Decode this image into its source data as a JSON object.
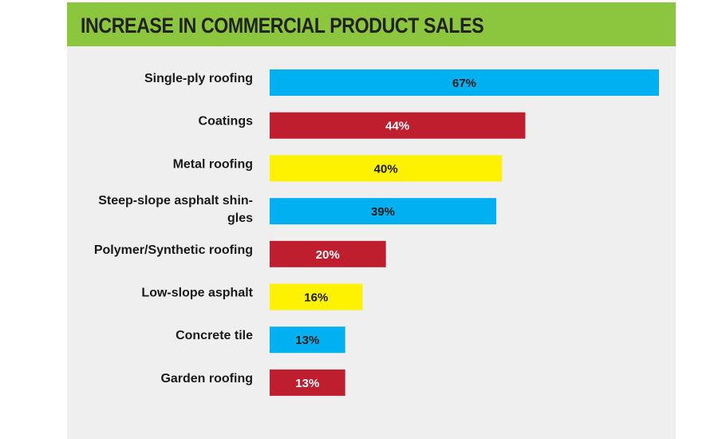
{
  "chart_data": {
    "type": "bar",
    "orientation": "horizontal",
    "title": "INCREASE IN COMMERCIAL PRODUCT SALES",
    "categories": [
      "Single-ply roofing",
      "Coatings",
      "Metal roofing",
      "Steep-slope asphalt shin-gles",
      "Polymer/Synthetic roofing",
      "Low-slope asphalt",
      "Concrete tile",
      "Garden roofing"
    ],
    "category_lines": [
      [
        "Single-ply roofing"
      ],
      [
        "Coatings"
      ],
      [
        "Metal roofing"
      ],
      [
        "Steep-slope asphalt shin-",
        "gles"
      ],
      [
        "Polymer/Synthetic roofing"
      ],
      [
        "Low-slope asphalt"
      ],
      [
        "Concrete tile"
      ],
      [
        "Garden roofing"
      ]
    ],
    "values": [
      67,
      44,
      40,
      39,
      20,
      16,
      13,
      13
    ],
    "value_labels": [
      "67%",
      "44%",
      "40%",
      "39%",
      "20%",
      "16%",
      "13%",
      "13%"
    ],
    "bar_colors": [
      "#00b0f0",
      "#be1e2d",
      "#fff200",
      "#00b0f0",
      "#be1e2d",
      "#fff200",
      "#00b0f0",
      "#be1e2d"
    ],
    "label_colors": [
      "#1a1a1a",
      "#ffffff",
      "#1a1a1a",
      "#1a1a1a",
      "#ffffff",
      "#1a1a1a",
      "#1a1a1a",
      "#ffffff"
    ],
    "xlim": [
      0,
      67
    ],
    "grid": false,
    "legend": "none"
  },
  "colors": {
    "header": "#8cc63f",
    "panel": "#efefef"
  }
}
